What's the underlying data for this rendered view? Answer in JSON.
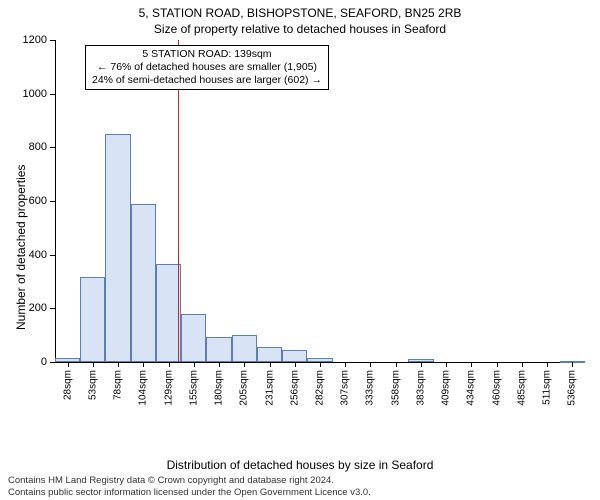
{
  "title_main": "5, STATION ROAD, BISHOPSTONE, SEAFORD, BN25 2RB",
  "title_sub": "Size of property relative to detached houses in Seaford",
  "yaxis_label": "Number of detached properties",
  "xaxis_label": "Distribution of detached houses by size in Seaford",
  "attribution_line1": "Contains HM Land Registry data © Crown copyright and database right 2024.",
  "attribution_line2": "Contains public sector information licensed under the Open Government Licence v3.0.",
  "chart": {
    "type": "histogram",
    "background_color": "#ffffff",
    "bar_fill": "#d8e4f5",
    "bar_border": "#5b7fb5",
    "marker_color": "#cc2222",
    "grid_color": "#e8e8e8",
    "axis_color": "#000000",
    "text_color": "#000000",
    "tick_fontsize": 11,
    "xtick_fontsize": 10,
    "label_fontsize": 12,
    "title_fontsize": 12,
    "annotation_fontsize": 10.5,
    "ylim": [
      0,
      1200
    ],
    "yticks": [
      0,
      200,
      400,
      600,
      800,
      1000,
      1200
    ],
    "bar_width_ratio": 1.0,
    "categories": [
      "28sqm",
      "53sqm",
      "78sqm",
      "104sqm",
      "129sqm",
      "155sqm",
      "180sqm",
      "205sqm",
      "231sqm",
      "256sqm",
      "282sqm",
      "307sqm",
      "333sqm",
      "358sqm",
      "383sqm",
      "409sqm",
      "434sqm",
      "460sqm",
      "485sqm",
      "511sqm",
      "536sqm"
    ],
    "values": [
      15,
      315,
      850,
      590,
      365,
      180,
      95,
      100,
      55,
      45,
      15,
      0,
      0,
      0,
      10,
      0,
      0,
      0,
      0,
      0,
      5
    ],
    "marker_position": 139,
    "marker_bin_start": 129,
    "marker_bin_end": 155,
    "annotation": {
      "lines": [
        "5 STATION ROAD: 139sqm",
        "← 76% of detached houses are smaller (1,905)",
        "24% of semi-detached houses are larger (602) →"
      ],
      "border_color": "#000000",
      "background": "#ffffff"
    }
  }
}
